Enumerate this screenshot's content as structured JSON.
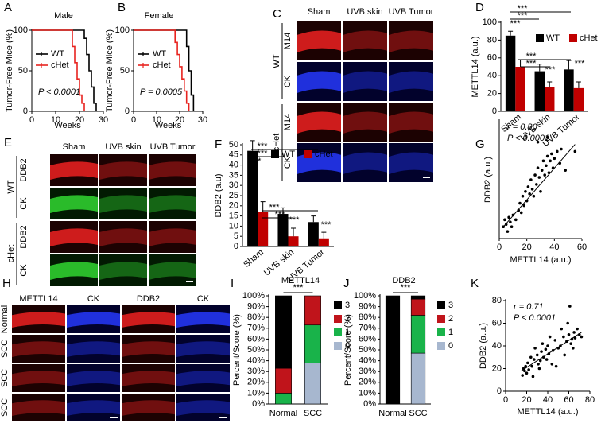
{
  "chart_data": [
    {
      "type": "step",
      "panel": "A",
      "title": "Male",
      "x_label": "Weeks",
      "y_label": "Tumor-Free Mice (%)",
      "xlim": [
        0,
        30
      ],
      "xticks": [
        0,
        10,
        20,
        30
      ],
      "ylim": [
        0,
        100
      ],
      "yticks": [
        0,
        50,
        100
      ],
      "annotation": "P < 0.0001",
      "series": [
        {
          "name": "WT",
          "color": "#000000",
          "x": [
            0,
            22,
            23,
            24,
            25,
            26,
            27
          ],
          "values": [
            100,
            90,
            70,
            50,
            30,
            10,
            0
          ]
        },
        {
          "name": "cHet",
          "color": "#e8231f",
          "x": [
            0,
            17,
            18,
            19,
            20,
            21,
            22
          ],
          "values": [
            100,
            80,
            60,
            40,
            20,
            10,
            0
          ]
        }
      ]
    },
    {
      "type": "step",
      "panel": "B",
      "title": "Female",
      "x_label": "Weeks",
      "y_label": "Tumor-Free Mice (%)",
      "xlim": [
        0,
        30
      ],
      "xticks": [
        0,
        10,
        20,
        30
      ],
      "ylim": [
        0,
        100
      ],
      "yticks": [
        0,
        50,
        100
      ],
      "annotation": "P = 0.0005",
      "series": [
        {
          "name": "WT",
          "color": "#000000",
          "x": [
            0,
            23,
            24,
            25,
            26
          ],
          "values": [
            100,
            80,
            50,
            20,
            0
          ]
        },
        {
          "name": "cHet",
          "color": "#e8231f",
          "x": [
            0,
            18,
            19,
            20,
            21,
            22,
            23,
            24
          ],
          "values": [
            100,
            85,
            70,
            55,
            40,
            25,
            10,
            0
          ]
        }
      ]
    },
    {
      "type": "bar",
      "panel": "D",
      "y_label": "METTL14 (a.u.)",
      "categories": [
        "Sham",
        "UVB skin",
        "UVB Tumor"
      ],
      "ylim": [
        0,
        100
      ],
      "yticks": [
        0,
        20,
        40,
        60,
        80,
        100
      ],
      "legend": "upper right",
      "series": [
        {
          "name": "WT",
          "color": "#000000",
          "values": [
            85,
            45,
            47
          ],
          "errors": [
            5,
            8,
            10
          ]
        },
        {
          "name": "cHet",
          "color": "#c00000",
          "values": [
            50,
            27,
            26
          ],
          "errors": [
            8,
            6,
            7
          ]
        }
      ],
      "significance": [
        "***",
        "***",
        "***",
        "***",
        "***",
        "***",
        "***"
      ]
    },
    {
      "type": "bar",
      "panel": "F",
      "y_label": "DDB2 (a.u)",
      "categories": [
        "Sham",
        "UVB skin",
        "UVB Tumor"
      ],
      "ylim": [
        0,
        50
      ],
      "yticks": [
        0,
        5,
        10,
        15,
        20,
        25,
        30,
        35,
        40,
        45,
        50
      ],
      "legend": "upper right",
      "series": [
        {
          "name": "WT",
          "color": "#000000",
          "values": [
            47,
            16,
            12
          ],
          "errors": [
            5,
            3,
            3
          ]
        },
        {
          "name": "cHet",
          "color": "#c00000",
          "values": [
            17,
            5,
            4
          ],
          "errors": [
            5,
            4,
            3
          ]
        }
      ],
      "significance": [
        "***",
        "***",
        "***",
        "***",
        "***",
        "***",
        "***"
      ]
    },
    {
      "type": "scatter",
      "panel": "G",
      "x_label": "METTL14 (a.u.)",
      "y_label": "DDB2 (a.u.)",
      "xlim": [
        0,
        60
      ],
      "xticks": [
        0,
        20,
        40,
        60
      ],
      "ylim": [
        0,
        50
      ],
      "color": "#000000",
      "annotations": [
        "r = 0.80",
        "P < 0.0001"
      ],
      "x": [
        3,
        4,
        5,
        6,
        7,
        8,
        9,
        10,
        12,
        14,
        15,
        16,
        17,
        18,
        19,
        20,
        21,
        22,
        23,
        24,
        25,
        26,
        27,
        28,
        29,
        30,
        31,
        32,
        33,
        34,
        35,
        36,
        37,
        38,
        39,
        40,
        42,
        44,
        45,
        48,
        55,
        35,
        28
      ],
      "values": [
        5,
        8,
        6,
        3,
        9,
        7,
        5,
        10,
        8,
        12,
        15,
        11,
        18,
        14,
        20,
        16,
        22,
        19,
        25,
        21,
        18,
        27,
        23,
        30,
        26,
        20,
        29,
        33,
        27,
        31,
        35,
        28,
        33,
        36,
        30,
        34,
        37,
        32,
        38,
        29,
        37,
        43,
        41
      ],
      "trend_line": {
        "x": [
          3,
          55
        ],
        "values": [
          5,
          40
        ]
      }
    },
    {
      "type": "stacked_bar",
      "panel": "I",
      "title": "METTL14",
      "y_label": "Percent/Score (%)",
      "categories": [
        "Normal",
        "SCC"
      ],
      "ylim": [
        0,
        100
      ],
      "yticks": [
        {
          "value": 0,
          "label": "0%"
        },
        {
          "value": 10,
          "label": "10%"
        },
        {
          "value": 20,
          "label": "20%"
        },
        {
          "value": 30,
          "label": "30%"
        },
        {
          "value": 40,
          "label": "40%"
        },
        {
          "value": 50,
          "label": "50%"
        },
        {
          "value": 60,
          "label": "60%"
        },
        {
          "value": 70,
          "label": "70%"
        },
        {
          "value": 80,
          "label": "80%"
        },
        {
          "value": 90,
          "label": "90%"
        },
        {
          "value": 100,
          "label": "100%"
        }
      ],
      "series": [
        {
          "name": "0",
          "color": "#a7b7cf",
          "values": [
            0,
            38
          ]
        },
        {
          "name": "1",
          "color": "#19b34a",
          "values": [
            10,
            35
          ]
        },
        {
          "name": "2",
          "color": "#c0141b",
          "values": [
            23,
            27
          ]
        },
        {
          "name": "3",
          "color": "#000000",
          "values": [
            67,
            0
          ]
        }
      ],
      "significance": [
        "***"
      ]
    },
    {
      "type": "stacked_bar",
      "panel": "J",
      "title": "DDB2",
      "y_label": "Percent/Score (%)",
      "categories": [
        "Normal",
        "SCC"
      ],
      "ylim": [
        0,
        100
      ],
      "yticks": [
        {
          "value": 0,
          "label": "0%"
        },
        {
          "value": 10,
          "label": "10%"
        },
        {
          "value": 20,
          "label": "20%"
        },
        {
          "value": 30,
          "label": "30%"
        },
        {
          "value": 40,
          "label": "40%"
        },
        {
          "value": 50,
          "label": "50%"
        },
        {
          "value": 60,
          "label": "60%"
        },
        {
          "value": 70,
          "label": "70%"
        },
        {
          "value": 80,
          "label": "80%"
        },
        {
          "value": 90,
          "label": "90%"
        },
        {
          "value": 100,
          "label": "100%"
        }
      ],
      "series": [
        {
          "name": "0",
          "color": "#a7b7cf",
          "values": [
            0,
            47
          ]
        },
        {
          "name": "1",
          "color": "#19b34a",
          "values": [
            0,
            35
          ]
        },
        {
          "name": "2",
          "color": "#c0141b",
          "values": [
            0,
            15
          ]
        },
        {
          "name": "3",
          "color": "#000000",
          "values": [
            100,
            3
          ]
        }
      ],
      "significance": [
        "***"
      ]
    },
    {
      "type": "scatter",
      "panel": "K",
      "x_label": "METTL14 (a.u.)",
      "y_label": "DDB2 (a.u.)",
      "xlim": [
        0,
        80
      ],
      "xticks": [
        0,
        20,
        40,
        60,
        80
      ],
      "ylim": [
        0,
        80
      ],
      "yticks": [
        0,
        20,
        40,
        60,
        80
      ],
      "color": "#000000",
      "annotations": [
        "r = 0.71",
        "P < 0.0001"
      ],
      "x": [
        16,
        17,
        18,
        19,
        20,
        21,
        22,
        24,
        25,
        26,
        27,
        28,
        30,
        31,
        32,
        33,
        34,
        35,
        36,
        38,
        39,
        40,
        41,
        42,
        44,
        45,
        47,
        48,
        50,
        52,
        53,
        55,
        56,
        58,
        59,
        60,
        61,
        62,
        63,
        64,
        65,
        66,
        68,
        70,
        72
      ],
      "values": [
        14,
        20,
        18,
        22,
        16,
        25,
        19,
        30,
        22,
        13,
        28,
        38,
        32,
        24,
        20,
        27,
        35,
        42,
        30,
        37,
        28,
        40,
        33,
        48,
        24,
        36,
        45,
        22,
        38,
        40,
        55,
        48,
        32,
        44,
        60,
        50,
        75,
        42,
        46,
        38,
        52,
        47,
        55,
        50,
        48
      ],
      "trend_line": {
        "x": [
          15,
          72
        ],
        "values": [
          18,
          52
        ]
      }
    }
  ],
  "image_panels": [
    {
      "panel": "C",
      "columns": [
        "Sham",
        "UVB skin",
        "UVB Tumor"
      ],
      "groups": [
        {
          "name": "WT",
          "rows": [
            "M14",
            "CK"
          ]
        },
        {
          "name": "cHet",
          "rows": [
            "M14",
            "CK"
          ]
        }
      ]
    },
    {
      "panel": "E",
      "columns": [
        "Sham",
        "UVB skin",
        "UVB Tumor"
      ],
      "groups": [
        {
          "name": "WT",
          "rows": [
            "DDB2",
            "CK"
          ]
        },
        {
          "name": "cHet",
          "rows": [
            "DDB2",
            "CK"
          ]
        }
      ]
    },
    {
      "panel": "H",
      "columns": [
        "METTL14",
        "CK",
        "DDB2",
        "CK"
      ],
      "rows": [
        "Normal",
        "SCC",
        "SCC",
        "SCC"
      ]
    }
  ]
}
